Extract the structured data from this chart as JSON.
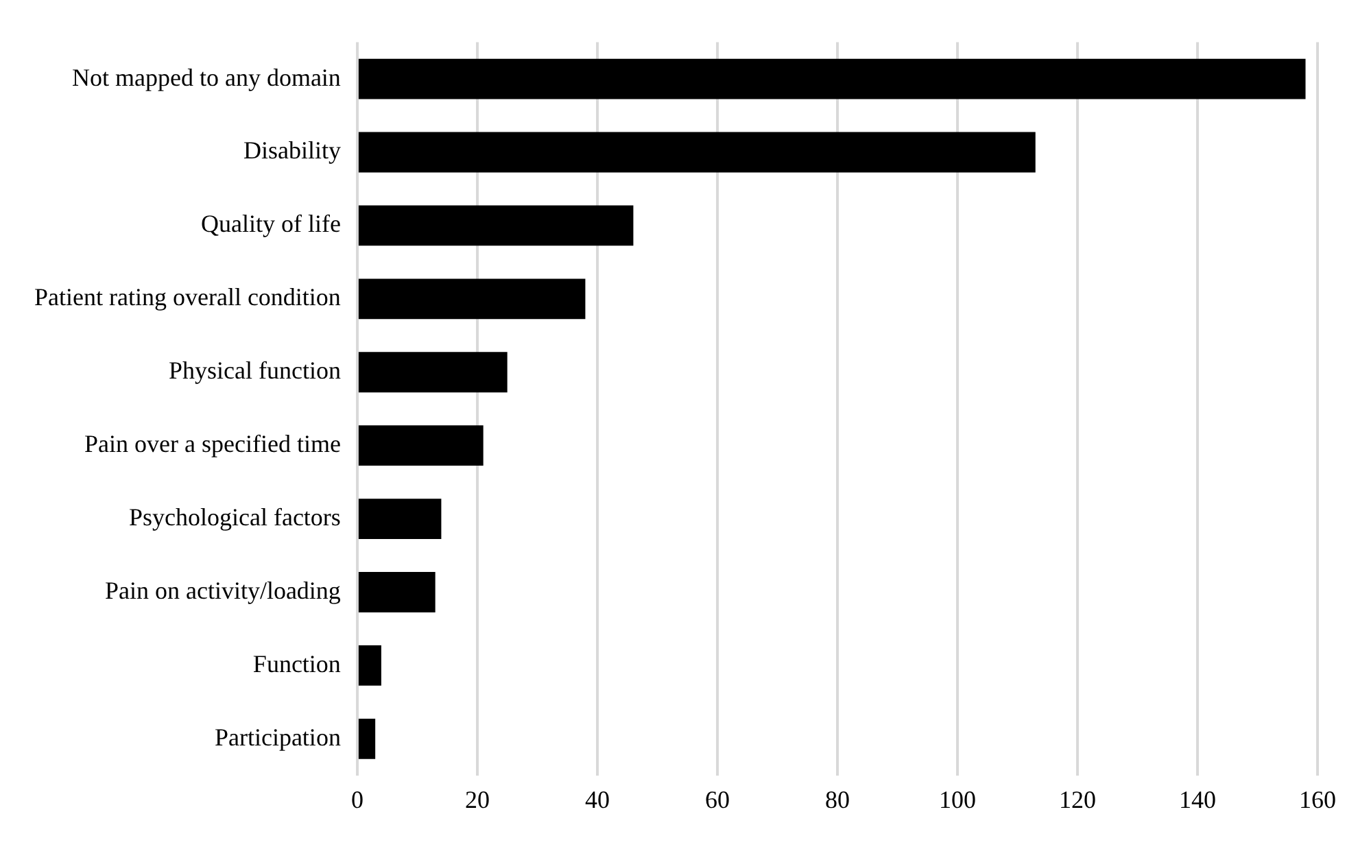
{
  "chart_data": {
    "type": "bar",
    "orientation": "horizontal",
    "categories": [
      "Not mapped to any domain",
      "Disability",
      "Quality of life",
      "Patient rating overall condition",
      "Physical function",
      "Pain over a specified time",
      "Psychological factors",
      "Pain on activity/loading",
      "Function",
      "Participation"
    ],
    "values": [
      158,
      113,
      46,
      38,
      25,
      21,
      14,
      13,
      4,
      3
    ],
    "color": "#000000",
    "xlim": [
      0,
      160
    ],
    "xticks": [
      0,
      20,
      40,
      60,
      80,
      100,
      120,
      140,
      160
    ],
    "grid": "x",
    "legend": false
  }
}
